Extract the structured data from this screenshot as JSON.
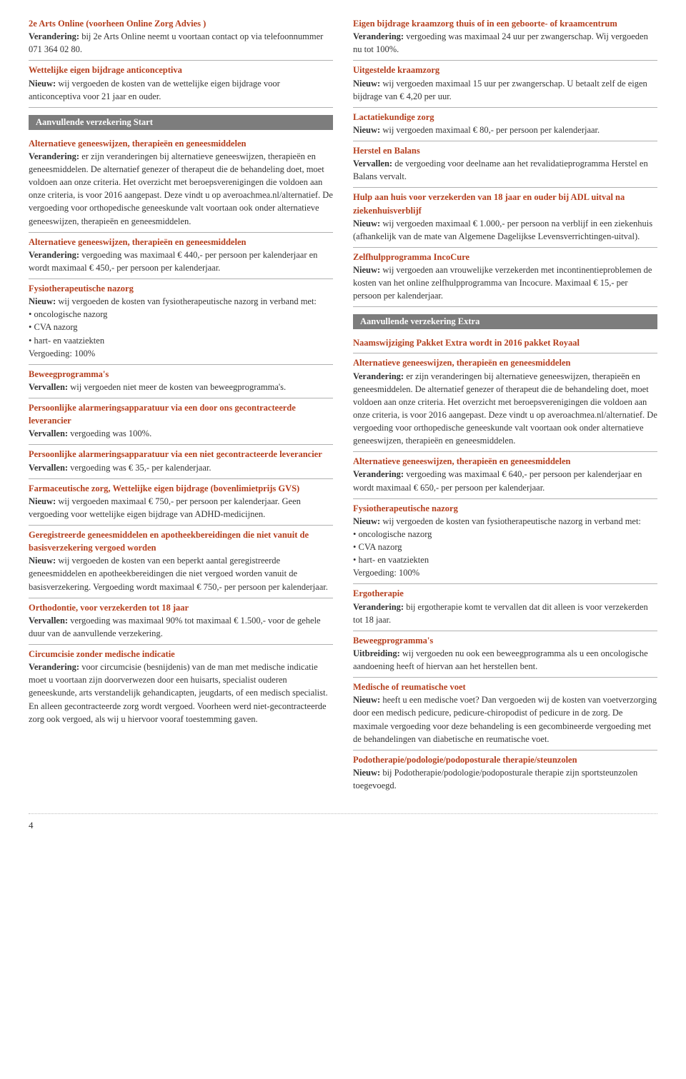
{
  "colors": {
    "accent": "#b5401f",
    "text": "#333333",
    "bar_bg": "#7d7d7d",
    "bar_text": "#ffffff",
    "divider": "#b0b0b0",
    "page_bg": "#ffffff"
  },
  "typography": {
    "body_fontsize_pt": 9,
    "title_weight": "bold",
    "font_family": "Georgia/serif"
  },
  "page_number": "4",
  "left": {
    "items_top": [
      {
        "title": "2e Arts Online (voorheen Online Zorg Advies )",
        "label": "Verandering:",
        "body": " bij 2e Arts Online neemt u voortaan contact op via telefoonnummer 071 364 02 80."
      },
      {
        "title": "Wettelijke eigen bijdrage anticonceptiva",
        "label": "Nieuw:",
        "body": " wij vergoeden de kosten van de wettelijke eigen bijdrage voor anticonceptiva voor 21 jaar en ouder."
      }
    ],
    "section_bar": "Aanvullende verzekering Start",
    "items_after": [
      {
        "title": "Alternatieve geneeswijzen, therapieën en geneesmiddelen",
        "label": "Verandering:",
        "body": " er zijn veranderingen bij alternatieve geneeswijzen, therapieën en geneesmiddelen. De alternatief genezer of therapeut die de behandeling doet, moet voldoen aan onze criteria. Het overzicht met beroepsverenigingen die voldoen aan onze criteria, is voor 2016 aangepast. Deze vindt u op averoachmea.nl/alternatief. De vergoeding voor orthopedische geneeskunde valt voortaan ook onder alternatieve geneeswijzen, therapieën en geneesmiddelen."
      },
      {
        "title": "Alternatieve geneeswijzen, therapieën en geneesmiddelen",
        "label": "Verandering:",
        "body": " vergoeding was maximaal € 440,- per persoon per kalenderjaar en wordt maximaal € 450,- per persoon per kalenderjaar."
      },
      {
        "title": "Fysiotherapeutische nazorg",
        "label": "Nieuw:",
        "body": " wij vergoeden de kosten van fysiotherapeutische nazorg in verband met:",
        "bullets": [
          "oncologische nazorg",
          "CVA nazorg",
          "hart- en vaatziekten"
        ],
        "trailer": "Vergoeding: 100%"
      },
      {
        "title": "Beweegprogramma's",
        "label": "Vervallen:",
        "body": " wij vergoeden niet meer de kosten van beweegprogramma's."
      },
      {
        "title": "Persoonlijke alarmeringsapparatuur via een door ons gecontracteerde leverancier",
        "label": "Vervallen:",
        "body": " vergoeding was 100%."
      },
      {
        "title": "Persoonlijke alarmeringsapparatuur via een niet gecontracteerde leverancier",
        "label": "Vervallen:",
        "body": " vergoeding was € 35,- per kalenderjaar."
      },
      {
        "title": "Farmaceutische zorg, Wettelijke eigen bijdrage (bovenlimietprijs GVS)",
        "label": "Nieuw:",
        "body": " wij vergoeden maximaal € 750,- per persoon per kalenderjaar. Geen vergoeding voor wettelijke eigen bijdrage van ADHD-medicijnen."
      },
      {
        "title": "Geregistreerde geneesmiddelen en apotheekbereidingen die niet vanuit de basisverzekering vergoed worden",
        "label": "Nieuw:",
        "body": " wij vergoeden de kosten van een beperkt aantal geregistreerde geneesmiddelen en apotheekbereidingen die niet vergoed worden vanuit de basisverzekering. Vergoeding wordt maximaal € 750,- per persoon per kalenderjaar."
      },
      {
        "title": "Orthodontie, voor verzekerden tot 18 jaar",
        "label": "Vervallen:",
        "body": " vergoeding was maximaal 90% tot maximaal € 1.500,- voor de gehele duur van de aanvullende verzekering."
      },
      {
        "title": "Circumcisie zonder medische indicatie",
        "label": "Verandering:",
        "body": " voor circumcisie (besnijdenis) van de man met medische indicatie moet u voortaan zijn doorverwezen door een huisarts, specialist ouderen geneeskunde, arts verstandelijk gehandicapten, jeugdarts, of een medisch specialist. En alleen gecontracteerde zorg wordt vergoed. Voorheen werd niet-gecontracteerde zorg ook vergoed, als wij u hiervoor vooraf toestemming gaven."
      }
    ]
  },
  "right": {
    "items_top": [
      {
        "title": "Eigen bijdrage kraamzorg thuis of in een geboorte- of kraamcentrum",
        "label": "Verandering:",
        "body": " vergoeding was maximaal 24 uur per zwangerschap. Wij vergoeden nu tot 100%."
      },
      {
        "title": "Uitgestelde kraamzorg",
        "label": "Nieuw:",
        "body": " wij vergoeden maximaal 15 uur per zwangerschap. U betaalt zelf de eigen bijdrage van € 4,20 per uur."
      },
      {
        "title": "Lactatiekundige zorg",
        "label": "Nieuw:",
        "body": " wij vergoeden maximaal € 80,- per persoon per kalenderjaar."
      },
      {
        "title": "Herstel en Balans",
        "label": "Vervallen:",
        "body": " de vergoeding voor deelname aan het revalidatieprogramma Herstel en Balans vervalt."
      },
      {
        "title": "Hulp aan huis voor verzekerden van 18 jaar en ouder bij ADL uitval na ziekenhuisverblijf",
        "label": "Nieuw:",
        "body": " wij vergoeden maximaal € 1.000,- per persoon na verblijf in een ziekenhuis (afhankelijk van de mate van Algemene Dagelijkse Levensverrichtingen-uitval)."
      },
      {
        "title": "Zelfhulpprogramma IncoCure",
        "label": "Nieuw:",
        "body": " wij vergoeden aan vrouwelijke verzekerden met incontinentieproblemen de kosten van het online zelfhulpprogramma van Incocure. Maximaal € 15,- per persoon per kalenderjaar."
      }
    ],
    "section_bar": "Aanvullende verzekering Extra",
    "notice": "Naamswijziging Pakket Extra wordt in 2016 pakket Royaal",
    "items_after": [
      {
        "title": "Alternatieve geneeswijzen, therapieën en geneesmiddelen",
        "label": "Verandering:",
        "body": " er zijn veranderingen bij alternatieve geneeswijzen, therapieën en geneesmiddelen. De alternatief genezer of therapeut die de behandeling doet, moet voldoen aan onze criteria. Het overzicht met beroepsverenigingen die voldoen aan onze criteria, is voor 2016 aangepast. Deze vindt u op averoachmea.nl/alternatief. De vergoeding voor orthopedische geneeskunde valt voortaan ook onder alternatieve geneeswijzen, therapieën en geneesmiddelen."
      },
      {
        "title": "Alternatieve geneeswijzen, therapieën en geneesmiddelen",
        "label": "Verandering:",
        "body": " vergoeding was maximaal € 640,- per persoon per kalenderjaar en wordt maximaal € 650,- per persoon per kalenderjaar."
      },
      {
        "title": "Fysiotherapeutische nazorg",
        "label": "Nieuw:",
        "body": " wij vergoeden de kosten van fysiotherapeutische nazorg in verband met:",
        "bullets": [
          "oncologische nazorg",
          "CVA nazorg",
          "hart- en vaatziekten"
        ],
        "trailer": "Vergoeding: 100%"
      },
      {
        "title": "Ergotherapie",
        "label": "Verandering:",
        "body": " bij ergotherapie komt te vervallen dat dit alleen is voor verzekerden tot 18 jaar."
      },
      {
        "title": "Beweegprogramma's",
        "label": "Uitbreiding:",
        "body": " wij vergoeden nu ook een beweegprogramma als u een oncologische aandoening heeft of hiervan aan het herstellen bent."
      },
      {
        "title": "Medische of reumatische voet",
        "label": "Nieuw:",
        "body": " heeft u een medische voet? Dan vergoeden wij de kosten van voetverzorging door een medisch pedicure, pedicure-chiropodist of pedicure in de zorg. De maximale vergoeding voor deze behandeling is een gecombineerde vergoeding met de behandelingen van diabetische en reumatische voet."
      },
      {
        "title": "Podotherapie/podologie/podoposturale therapie/steunzolen",
        "label": "Nieuw:",
        "body": " bij Podotherapie/podologie/podoposturale therapie zijn sportsteunzolen toegevoegd."
      }
    ]
  }
}
